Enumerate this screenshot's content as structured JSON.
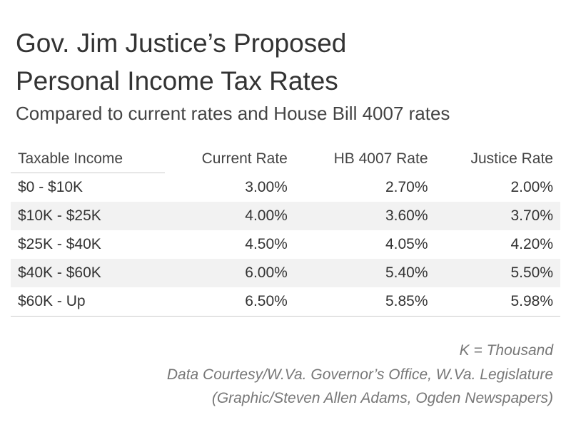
{
  "header": {
    "title": [
      "Gov. Jim Justice’s Proposed",
      "Personal Income Tax Rates"
    ],
    "subtitle": "Compared to current rates and House Bill 4007 rates"
  },
  "table": {
    "columns": [
      "Taxable Income",
      "Current Rate",
      "HB 4007 Rate",
      "Justice Rate"
    ],
    "rows": [
      [
        "$0 - $10K",
        "3.00%",
        "2.70%",
        "2.00%"
      ],
      [
        "$10K - $25K",
        "4.00%",
        "3.60%",
        "3.70%"
      ],
      [
        "$25K - $40K",
        "4.50%",
        "4.05%",
        "4.20%"
      ],
      [
        "$40K - $60K",
        "6.00%",
        "5.40%",
        "5.50%"
      ],
      [
        "$60K - Up",
        "6.50%",
        "5.85%",
        "5.98%"
      ]
    ]
  },
  "footer": [
    "K = Thousand",
    "Data Courtesy/W.Va. Governor’s Office, W.Va. Legislature",
    "(Graphic/Steven Allen Adams, Ogden Newspapers)"
  ]
}
